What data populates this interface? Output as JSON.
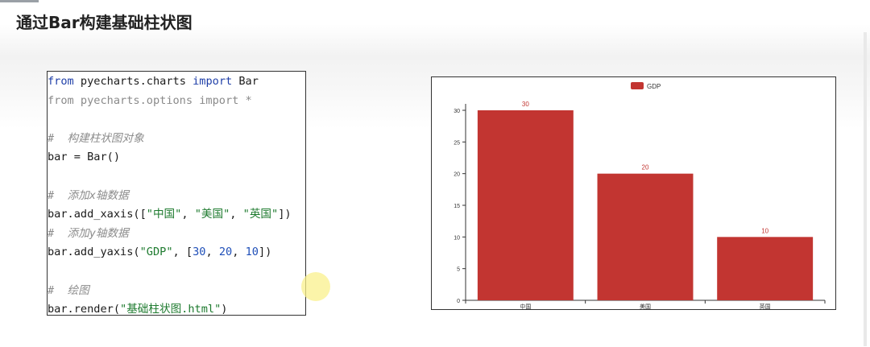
{
  "slide": {
    "title": "通过Bar构建基础柱状图"
  },
  "code": {
    "line1": {
      "k1": "from",
      "t1": " pyecharts.charts ",
      "k2": "import",
      "t2": " Bar"
    },
    "line2": "from pyecharts.options import *",
    "line4": "#  构建柱状图对象",
    "line5": "bar = Bar()",
    "line7": "#  添加x轴数据",
    "line8": {
      "a": "bar.add_xaxis([",
      "s1": "\"中国\"",
      "c1": ", ",
      "s2": "\"美国\"",
      "c2": ", ",
      "s3": "\"英国\"",
      "b": "])"
    },
    "line9": "#  添加y轴数据",
    "line10": {
      "a": "bar.add_yaxis(",
      "s1": "\"GDP\"",
      "c1": ", [",
      "n1": "30",
      "c2": ", ",
      "n2": "20",
      "c3": ", ",
      "n3": "10",
      "b": "])"
    },
    "line12": "#  绘图",
    "line13": {
      "a": "bar.render(",
      "s1": "\"基础柱状图.html\"",
      "b": ")"
    }
  },
  "chart_data": {
    "type": "bar",
    "categories": [
      "中国",
      "美国",
      "英国"
    ],
    "series": [
      {
        "name": "GDP",
        "values": [
          30,
          20,
          10
        ],
        "color": "#c23531"
      }
    ],
    "ylim": [
      0,
      30
    ],
    "yticks": [
      0,
      5,
      10,
      15,
      20,
      25,
      30
    ],
    "legend_position": "top-center",
    "data_labels": true
  }
}
